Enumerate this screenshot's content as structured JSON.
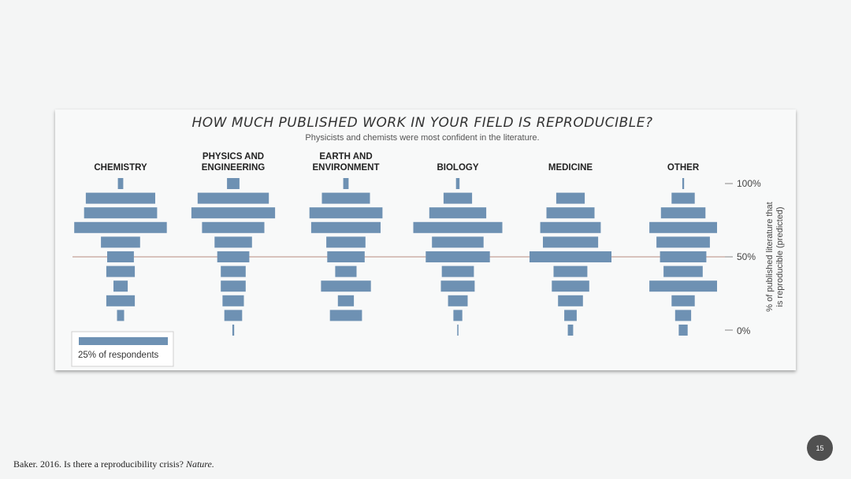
{
  "chart_data": {
    "type": "bar",
    "title": "HOW MUCH PUBLISHED WORK IN YOUR FIELD IS REPRODUCIBLE?",
    "subtitle": "Physicists and chemists were most confident in the literature.",
    "ylabel_lines": [
      "% of published literature that",
      "is reproducible (predicted)"
    ],
    "y_ticks": [
      "0%",
      "50%",
      "100%"
    ],
    "ylim": [
      0,
      100
    ],
    "bins": [
      100,
      90,
      80,
      70,
      60,
      50,
      40,
      30,
      20,
      10,
      0
    ],
    "reference_line": 50,
    "legend_label": "25% of respondents",
    "legend_value": 25,
    "categories": [
      {
        "label_lines": [
          "CHEMISTRY"
        ],
        "values": [
          1.5,
          19.5,
          20.5,
          26,
          11,
          7.5,
          8,
          4,
          8,
          2,
          0
        ]
      },
      {
        "label_lines": [
          "PHYSICS AND",
          "ENGINEERING"
        ],
        "values": [
          3.5,
          20,
          23.5,
          17.5,
          10.5,
          9,
          7,
          7,
          6,
          5,
          0.5
        ]
      },
      {
        "label_lines": [
          "EARTH AND",
          "ENVIRONMENT"
        ],
        "values": [
          1.5,
          13.5,
          20.5,
          19.5,
          11,
          10.5,
          6,
          14,
          4.5,
          9,
          0
        ]
      },
      {
        "label_lines": [
          "BIOLOGY"
        ],
        "values": [
          1,
          8,
          16,
          25,
          14.5,
          18,
          9,
          9.5,
          5.5,
          2.5,
          0.3
        ]
      },
      {
        "label_lines": [
          "MEDICINE"
        ],
        "values": [
          0,
          8,
          13.5,
          17,
          15.5,
          23,
          9.5,
          10.5,
          7,
          3.5,
          1.5
        ]
      },
      {
        "label_lines": [
          "OTHER"
        ],
        "values": [
          0.5,
          6.5,
          12.5,
          19,
          15,
          13,
          11,
          19,
          6.5,
          4.5,
          2.5
        ]
      }
    ],
    "bar_color": "#6e91b3",
    "reference_line_color": "#b98a80"
  },
  "footer": {
    "citation": "Baker. 2016. Is there a reproducibility crisis? ",
    "journal": "Nature."
  },
  "page_number": "15"
}
